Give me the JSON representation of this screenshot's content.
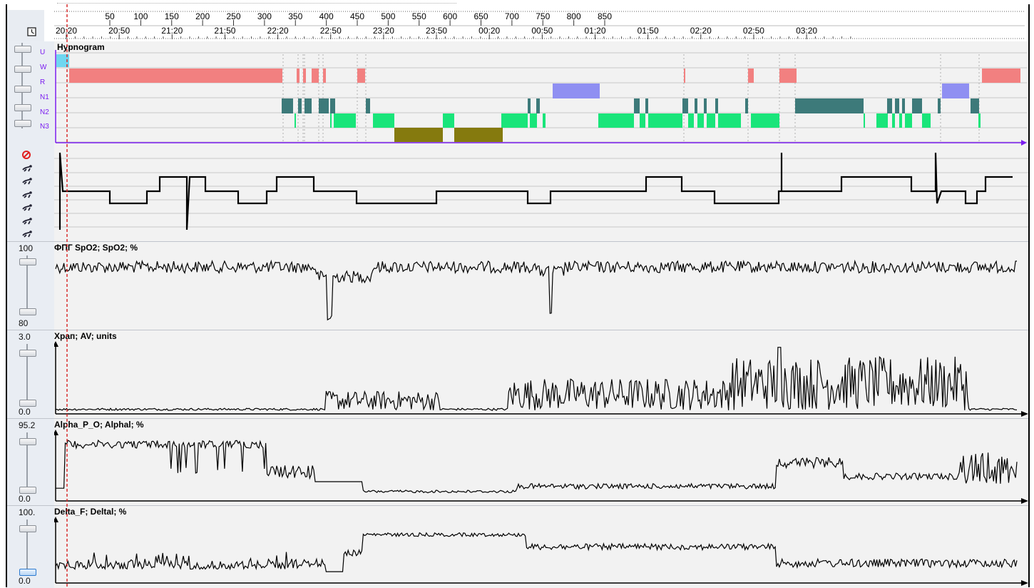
{
  "timeline": {
    "sample_ticks": [
      "50",
      "100",
      "150",
      "200",
      "250",
      "300",
      "350",
      "400",
      "450",
      "500",
      "550",
      "600",
      "650",
      "700",
      "750",
      "800",
      "850"
    ],
    "time_ticks": [
      "20:20",
      "20:50",
      "21:20",
      "21:50",
      "22:20",
      "22:50",
      "23:20",
      "23:50",
      "00:20",
      "00:50",
      "01:20",
      "01:50",
      "02:20",
      "02:50",
      "03:20"
    ]
  },
  "hypnogram": {
    "title": "Hypnogram",
    "stages": [
      "U",
      "W",
      "R",
      "N1",
      "N2",
      "N3"
    ],
    "colors": {
      "U": "#6fd6f0",
      "W": "#f28080",
      "R": "#8f8ff2",
      "N1": "#3d7a7a",
      "N2": "#19e57a",
      "N3": "#857a0e"
    }
  },
  "position": {
    "icons": [
      "no-signal-icon",
      "prone-icon",
      "left-side-icon",
      "supine-icon",
      "right-side-icon",
      "upright-icon",
      "sitting-icon"
    ]
  },
  "tracks": [
    {
      "title": "ФПГ SpO2; SpO2; %",
      "max": "100",
      "min": "80"
    },
    {
      "title": "Храп; AV; units",
      "max": "3.0",
      "min": "0.0"
    },
    {
      "title": "Alpha_P_O; Alphal; %",
      "max": "95.2",
      "min": "0.0"
    },
    {
      "title": "Delta_F; Deltal; %",
      "max": "100.",
      "min": "0.0"
    }
  ],
  "colors": {
    "cursor": "#d62020",
    "hyp_axis": "#7a1cf0",
    "trace": "#000000"
  }
}
